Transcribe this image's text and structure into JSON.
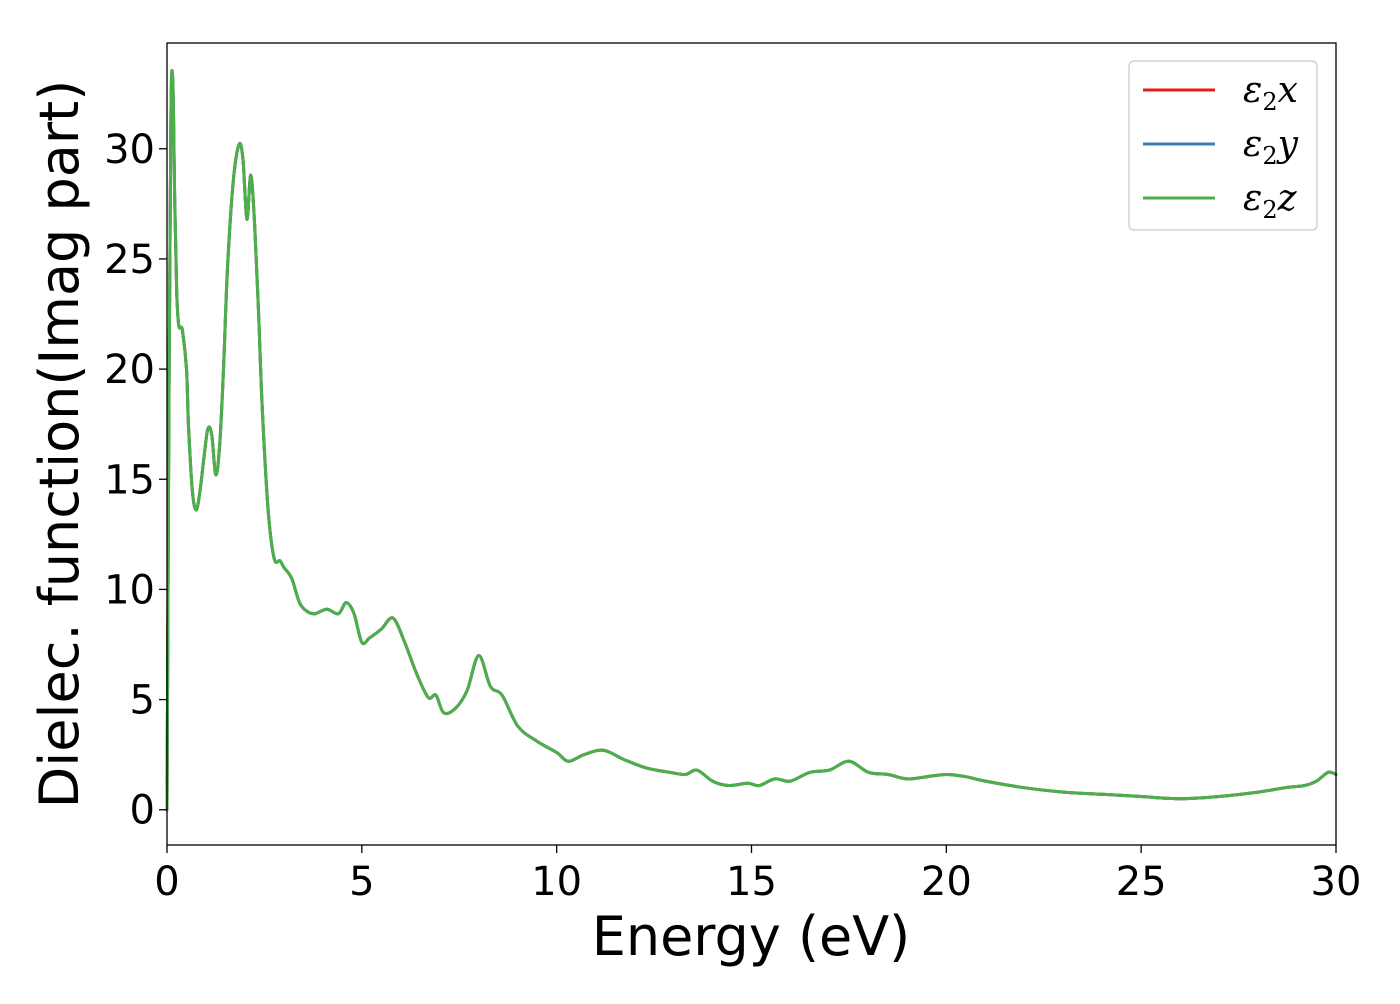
{
  "chart_data": {
    "type": "line",
    "title": "",
    "xlabel": "Energy (eV)",
    "ylabel": "Dielec. function(Imag part)",
    "xlim": [
      0,
      30
    ],
    "ylim": [
      -1.6,
      34.8
    ],
    "xticks": [
      0,
      5,
      10,
      15,
      20,
      25,
      30
    ],
    "yticks": [
      0,
      5,
      10,
      15,
      20,
      25,
      30
    ],
    "xtick_labels": [
      "0",
      "5",
      "10",
      "15",
      "20",
      "25",
      "30"
    ],
    "ytick_labels": [
      "0",
      "5",
      "10",
      "15",
      "20",
      "25",
      "30"
    ],
    "grid": false,
    "legend_position": "top-right",
    "x": [
      0,
      0.05,
      0.1,
      0.15,
      0.2,
      0.25,
      0.3,
      0.35,
      0.4,
      0.5,
      0.55,
      0.65,
      0.75,
      0.85,
      0.95,
      1.05,
      1.15,
      1.25,
      1.35,
      1.45,
      1.55,
      1.7,
      1.85,
      1.95,
      2.05,
      2.15,
      2.25,
      2.35,
      2.45,
      2.6,
      2.75,
      2.9,
      3.0,
      3.2,
      3.4,
      3.6,
      3.8,
      4.1,
      4.4,
      4.6,
      4.8,
      5.0,
      5.2,
      5.5,
      5.8,
      6.1,
      6.4,
      6.7,
      6.9,
      7.1,
      7.4,
      7.7,
      8.0,
      8.3,
      8.6,
      9.0,
      9.5,
      10.0,
      10.3,
      10.7,
      11.2,
      11.7,
      12.3,
      12.9,
      13.3,
      13.6,
      14.0,
      14.4,
      14.9,
      15.2,
      15.6,
      16.0,
      16.5,
      17.0,
      17.5,
      18.0,
      18.5,
      19.0,
      19.5,
      20.0,
      20.5,
      21.0,
      22.0,
      23.0,
      24.0,
      25.0,
      26.0,
      27.0,
      28.0,
      28.7,
      29.2,
      29.5,
      29.8,
      30.0
    ],
    "series": [
      {
        "name": "ε2x",
        "color": "#e41a1c",
        "values": [
          0,
          18,
          31.5,
          33.1,
          27.5,
          23.5,
          22.0,
          21.9,
          21.7,
          20.0,
          17.5,
          14.5,
          13.6,
          14.5,
          16.0,
          17.3,
          17.0,
          15.2,
          16.5,
          20.0,
          24.5,
          28.5,
          30.2,
          29.5,
          26.8,
          28.8,
          26.5,
          22.5,
          18.0,
          13.5,
          11.4,
          11.3,
          11.0,
          10.5,
          9.4,
          9.0,
          8.9,
          9.1,
          8.9,
          9.4,
          8.9,
          7.6,
          7.8,
          8.2,
          8.7,
          7.6,
          6.2,
          5.1,
          5.2,
          4.4,
          4.6,
          5.4,
          7.0,
          5.6,
          5.2,
          3.8,
          3.1,
          2.6,
          2.2,
          2.5,
          2.7,
          2.3,
          1.9,
          1.7,
          1.6,
          1.8,
          1.3,
          1.1,
          1.2,
          1.1,
          1.4,
          1.3,
          1.7,
          1.8,
          2.2,
          1.7,
          1.6,
          1.4,
          1.5,
          1.6,
          1.5,
          1.3,
          1.0,
          0.8,
          0.7,
          0.6,
          0.5,
          0.6,
          0.8,
          1.0,
          1.1,
          1.3,
          1.7,
          1.6
        ]
      },
      {
        "name": "ε2y",
        "color": "#377eb8",
        "values": [
          0,
          18,
          31.5,
          33.1,
          27.5,
          23.5,
          22.0,
          21.9,
          21.7,
          20.0,
          17.5,
          14.5,
          13.6,
          14.5,
          16.0,
          17.3,
          17.0,
          15.2,
          16.5,
          20.0,
          24.5,
          28.5,
          30.2,
          29.5,
          26.8,
          28.8,
          26.5,
          22.5,
          18.0,
          13.5,
          11.4,
          11.3,
          11.0,
          10.5,
          9.4,
          9.0,
          8.9,
          9.1,
          8.9,
          9.4,
          8.9,
          7.6,
          7.8,
          8.2,
          8.7,
          7.6,
          6.2,
          5.1,
          5.2,
          4.4,
          4.6,
          5.4,
          7.0,
          5.6,
          5.2,
          3.8,
          3.1,
          2.6,
          2.2,
          2.5,
          2.7,
          2.3,
          1.9,
          1.7,
          1.6,
          1.8,
          1.3,
          1.1,
          1.2,
          1.1,
          1.4,
          1.3,
          1.7,
          1.8,
          2.2,
          1.7,
          1.6,
          1.4,
          1.5,
          1.6,
          1.5,
          1.3,
          1.0,
          0.8,
          0.7,
          0.6,
          0.5,
          0.6,
          0.8,
          1.0,
          1.1,
          1.3,
          1.7,
          1.6
        ]
      },
      {
        "name": "ε2z",
        "color": "#4daf4a",
        "values": [
          0,
          18,
          31.5,
          33.1,
          27.5,
          23.5,
          22.0,
          21.9,
          21.7,
          20.0,
          17.5,
          14.5,
          13.6,
          14.5,
          16.0,
          17.3,
          17.0,
          15.2,
          16.5,
          20.0,
          24.5,
          28.5,
          30.2,
          29.5,
          26.8,
          28.8,
          26.5,
          22.5,
          18.0,
          13.5,
          11.4,
          11.3,
          11.0,
          10.5,
          9.4,
          9.0,
          8.9,
          9.1,
          8.9,
          9.4,
          8.9,
          7.6,
          7.8,
          8.2,
          8.7,
          7.6,
          6.2,
          5.1,
          5.2,
          4.4,
          4.6,
          5.4,
          7.0,
          5.6,
          5.2,
          3.8,
          3.1,
          2.6,
          2.2,
          2.5,
          2.7,
          2.3,
          1.9,
          1.7,
          1.6,
          1.8,
          1.3,
          1.1,
          1.2,
          1.1,
          1.4,
          1.3,
          1.7,
          1.8,
          2.2,
          1.7,
          1.6,
          1.4,
          1.5,
          1.6,
          1.5,
          1.3,
          1.0,
          0.8,
          0.7,
          0.6,
          0.5,
          0.6,
          0.8,
          1.0,
          1.1,
          1.3,
          1.7,
          1.6
        ]
      }
    ],
    "legend": [
      {
        "symbol": "ε",
        "sub": "2",
        "suffix": "x"
      },
      {
        "symbol": "ε",
        "sub": "2",
        "suffix": "y"
      },
      {
        "symbol": "ε",
        "sub": "2",
        "suffix": "z"
      }
    ]
  }
}
